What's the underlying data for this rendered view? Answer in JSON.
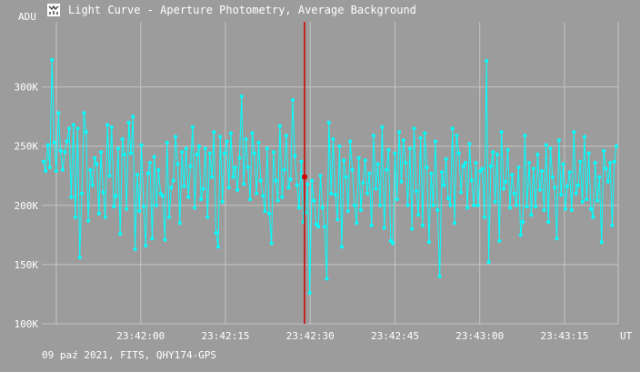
{
  "window": {
    "title": "Light Curve - Aperture Photometry, Average Background",
    "icon": "light-curve-app-icon"
  },
  "axes": {
    "y_unit": "ADU",
    "x_unit": "UT"
  },
  "footer": {
    "info": "09 paź 2021, FITS, QHY174-GPS"
  },
  "colors": {
    "background": "#9c9c9c",
    "grid": "#c4c4c4",
    "series": "#00ffff",
    "cursor": "#cc0000",
    "text": "#ffffff"
  },
  "chart_data": {
    "type": "line",
    "xlabel": "UT",
    "ylabel": "ADU",
    "y_ticks": [
      "100K",
      "150K",
      "200K",
      "250K",
      "300K"
    ],
    "y_tick_values": [
      100000,
      150000,
      200000,
      250000,
      300000
    ],
    "x_ticks": [
      "23:42:00",
      "23:42:15",
      "23:42:30",
      "23:42:45",
      "23:43:00",
      "23:43:15"
    ],
    "x_tick_seconds": [
      0,
      15,
      30,
      45,
      60,
      75
    ],
    "xlim_seconds": [
      -17.5,
      84.5
    ],
    "ylim": [
      100000,
      355000
    ],
    "cursor_time": "23:42:29",
    "cursor_value": 224000,
    "grid": true,
    "series": [
      {
        "values": [
          237000,
          229000,
          251000,
          232000,
          323000,
          253000,
          229000,
          278000,
          246000,
          230000,
          245000,
          254000,
          265000,
          207000,
          268000,
          190000,
          265000,
          156000,
          210000,
          278000,
          262000,
          187000,
          230000,
          217000,
          240000,
          235000,
          193000,
          245000,
          211000,
          190000,
          268000,
          225000,
          266000,
          199000,
          208000,
          248000,
          176000,
          256000,
          243000,
          197000,
          270000,
          244000,
          275000,
          163000,
          226000,
          195000,
          251000,
          199000,
          166000,
          227000,
          236000,
          172000,
          241000,
          200000,
          230000,
          210000,
          208000,
          171000,
          253000,
          190000,
          215000,
          221000,
          258000,
          235000,
          185000,
          245000,
          216000,
          248000,
          207000,
          233000,
          266000,
          198000,
          243000,
          250000,
          205000,
          214000,
          248000,
          190000,
          244000,
          224000,
          262000,
          177000,
          165000,
          258000,
          203000,
          244000,
          254000,
          215000,
          261000,
          224000,
          232000,
          213000,
          240000,
          292000,
          218000,
          256000,
          232000,
          205000,
          261000,
          244000,
          210000,
          253000,
          221000,
          208000,
          195000,
          248000,
          193000,
          168000,
          245000,
          221000,
          204000,
          267000,
          207000,
          230000,
          259000,
          215000,
          222000,
          289000,
          242000,
          217000,
          198000,
          237000,
          186000,
          194000,
          218000,
          126000,
          221000,
          204000,
          184000,
          182000,
          225000,
          198000,
          182000,
          138000,
          270000,
          210000,
          256000,
          209000,
          188000,
          250000,
          165000,
          238000,
          224000,
          195000,
          254000,
          230000,
          200000,
          185000,
          240000,
          196000,
          219000,
          238000,
          210000,
          227000,
          183000,
          259000,
          214000,
          235000,
          200000,
          266000,
          181000,
          230000,
          247000,
          170000,
          168000,
          244000,
          205000,
          262000,
          220000,
          255000,
          236000,
          200000,
          248000,
          180000,
          265000,
          212000,
          192000,
          257000,
          183000,
          261000,
          232000,
          169000,
          227000,
          200000,
          254000,
          196000,
          140000,
          228000,
          217000,
          239000,
          206000,
          200000,
          265000,
          185000,
          259000,
          244000,
          211000,
          233000,
          236000,
          198000,
          252000,
          221000,
          200000,
          236000,
          200000,
          229000,
          231000,
          190000,
          322000,
          152000,
          233000,
          245000,
          203000,
          243000,
          170000,
          262000,
          214000,
          220000,
          247000,
          198000,
          226000,
          210000,
          200000,
          232000,
          175000,
          186000,
          259000,
          199000,
          236000,
          192000,
          231000,
          199000,
          243000,
          213000,
          229000,
          196000,
          251000,
          186000,
          248000,
          224000,
          215000,
          172000,
          255000,
          209000,
          235000,
          197000,
          216000,
          228000,
          196000,
          262000,
          210000,
          217000,
          237000,
          203000,
          258000,
          205000,
          244000,
          197000,
          190000,
          236000,
          204000,
          224000,
          169000,
          246000,
          231000,
          220000,
          236000,
          183000,
          237000,
          250000
        ]
      }
    ]
  }
}
